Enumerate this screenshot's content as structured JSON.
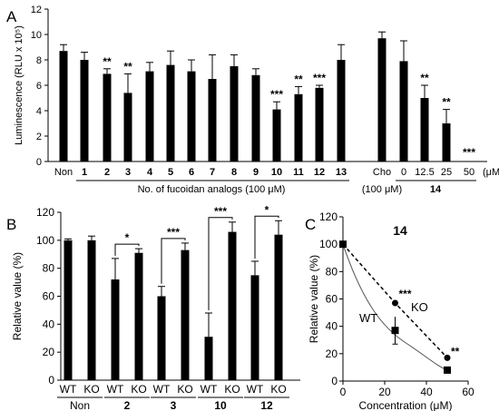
{
  "figure": {
    "panel_labels": {
      "a": "A",
      "b": "B",
      "c": "C"
    }
  },
  "chart_data": [
    {
      "panel": "A",
      "type": "bar",
      "ylabel": "Luminescence (RLU x 10⁵)",
      "ylim": [
        0,
        12
      ],
      "yticks": [
        0,
        2,
        4,
        6,
        8,
        10,
        12
      ],
      "grid": false,
      "categories": [
        "Non",
        "1",
        "2",
        "3",
        "4",
        "5",
        "6",
        "7",
        "8",
        "9",
        "10",
        "11",
        "12",
        "13",
        "Cho",
        "0",
        "12.5",
        "25",
        "50"
      ],
      "values": [
        8.7,
        8.0,
        6.9,
        5.4,
        7.1,
        7.6,
        7.1,
        6.5,
        7.5,
        6.8,
        4.1,
        5.3,
        5.8,
        8.0,
        9.7,
        7.9,
        5.0,
        3.0,
        0.0
      ],
      "errors": [
        0.5,
        0.6,
        0.4,
        1.5,
        0.7,
        1.1,
        0.9,
        1.9,
        0.9,
        0.5,
        0.6,
        0.6,
        0.2,
        1.2,
        0.5,
        1.6,
        1.0,
        1.1,
        0.0
      ],
      "significance": [
        "",
        "",
        "**",
        "**",
        "",
        "",
        "",
        "",
        "",
        "",
        "***",
        "**",
        "***",
        "",
        "",
        "",
        "**",
        "**",
        "***"
      ],
      "group_labels": {
        "analogs": "No. of fucoidan analogs (100 μM)",
        "cho_conc": "(100 μM)",
        "compound": "14",
        "unit": "(μM)"
      }
    },
    {
      "panel": "B",
      "type": "bar",
      "ylabel": "Relative value (%)",
      "ylim": [
        0,
        120
      ],
      "yticks": [
        0,
        20,
        40,
        60,
        80,
        100,
        120
      ],
      "grid": false,
      "groups": [
        "Non",
        "2",
        "3",
        "10",
        "12"
      ],
      "subcategories": [
        "WT",
        "KO"
      ],
      "series": [
        {
          "name": "WT",
          "values": [
            100,
            72,
            60,
            31,
            75
          ],
          "errors": [
            1,
            15,
            7,
            17,
            10
          ]
        },
        {
          "name": "KO",
          "values": [
            100,
            91,
            93,
            106,
            104
          ],
          "errors": [
            3,
            3,
            5,
            7,
            10
          ]
        }
      ],
      "significance": [
        "",
        "*",
        "***",
        "***",
        "*"
      ]
    },
    {
      "panel": "C",
      "type": "line",
      "title": "14",
      "xlabel": "Concentration (μM)",
      "ylabel": "Relative value (%)",
      "xlim": [
        0,
        60
      ],
      "ylim": [
        0,
        120
      ],
      "xticks": [
        0,
        20,
        40,
        60
      ],
      "yticks": [
        0,
        20,
        40,
        60,
        80,
        100,
        120
      ],
      "grid": false,
      "series": [
        {
          "name": "WT",
          "x": [
            0,
            25,
            50
          ],
          "y": [
            100,
            37,
            8
          ],
          "errors": [
            2,
            10,
            0
          ],
          "marker": "square",
          "line": "solid"
        },
        {
          "name": "KO",
          "x": [
            0,
            25,
            50
          ],
          "y": [
            100,
            57,
            17
          ],
          "errors": [
            2,
            3,
            0
          ],
          "marker": "circle",
          "line": "dashed"
        }
      ],
      "significance": {
        "x": [
          25,
          50
        ],
        "labels": [
          "***",
          "**"
        ]
      }
    }
  ]
}
